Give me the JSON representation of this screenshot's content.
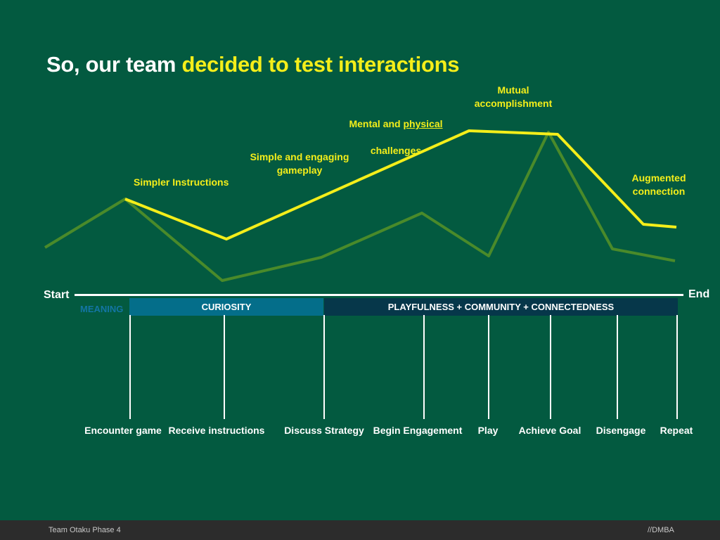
{
  "slide": {
    "title_prefix": "So, our team ",
    "title_highlight": "decided to test interactions",
    "start_label": "Start",
    "end_label": "End"
  },
  "annotations": {
    "simpler_instructions": "Simpler Instructions",
    "simple_engaging": "Simple and engaging\ngameplay",
    "mental_prefix": "Mental and ",
    "mental_underlined": "physical",
    "mental_suffix": "challenges",
    "mutual": "Mutual\naccomplishment",
    "augmented": "Augmented\nconnection"
  },
  "phases": {
    "meaning": "MEANING",
    "curiosity": "CURIOSITY",
    "playfulness": "PLAYFULNESS + COMMUNITY + CONNECTEDNESS"
  },
  "stages": [
    "Encounter game",
    "Receive instructions",
    "Discuss Strategy",
    "Begin Engagement",
    "Play",
    "Achieve Goal",
    "Disengage",
    "Repeat"
  ],
  "footer": {
    "left": "Team Otaku Phase 4",
    "right": "//DMBA"
  },
  "colors": {
    "background": "#035a40",
    "highlight": "#f4ee1a",
    "baseline_line": "#4a8a2a",
    "curiosity_band": "#046e8a",
    "playfulness_band": "#06374a"
  }
}
